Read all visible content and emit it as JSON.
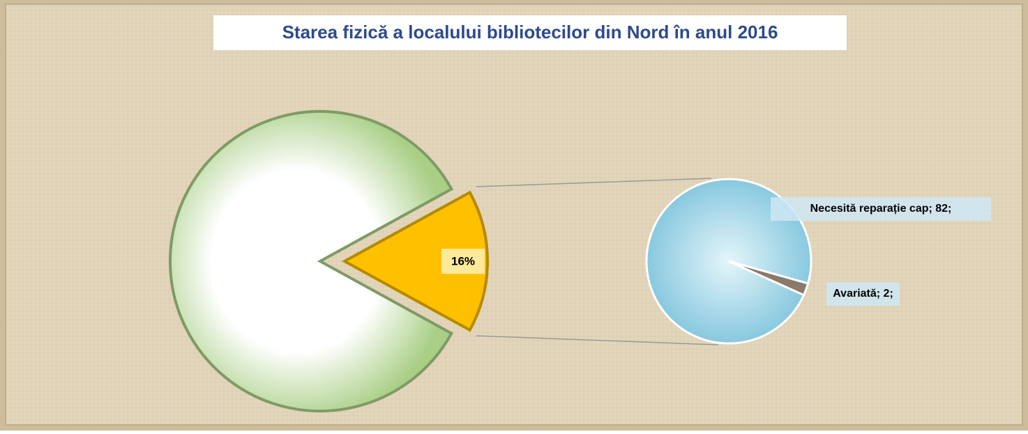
{
  "chart_data": {
    "type": "pie-of-pie",
    "title": "Starea fizică a localului bibliotecilor din Nord în anul 2016",
    "main": {
      "values": [
        84,
        16
      ],
      "value_labels": [
        null,
        "16%"
      ],
      "colors": [
        "#b9d99a",
        "#ffc000"
      ]
    },
    "secondary": {
      "values": [
        82,
        2
      ],
      "value_labels": [
        "Necesită reparație cap; 82;",
        "Avariată; 2;"
      ],
      "colors": [
        "#a8dcea",
        "#8a7a6a"
      ]
    }
  }
}
